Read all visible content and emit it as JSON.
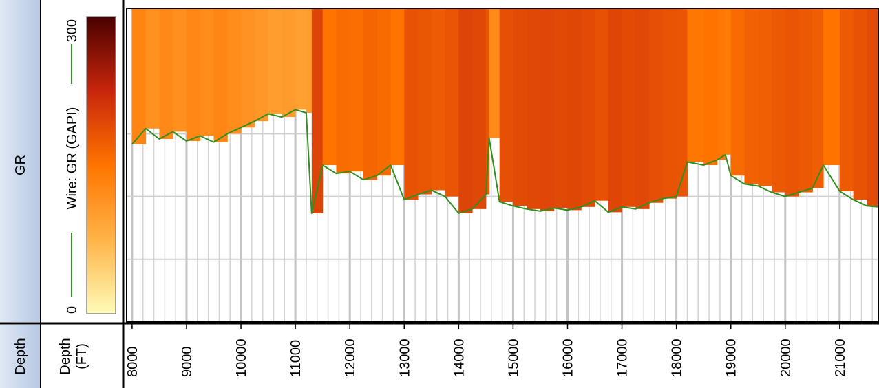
{
  "track_label": "GR",
  "depth_label": "Depth",
  "chart_data": {
    "type": "line",
    "x": [
      8000,
      8250,
      8500,
      8750,
      9000,
      9250,
      9500,
      9750,
      10000,
      10250,
      10500,
      10750,
      11000,
      11200,
      11300,
      11500,
      11750,
      12000,
      12250,
      12500,
      12750,
      13000,
      13250,
      13500,
      13750,
      14000,
      14250,
      14500,
      14560,
      14750,
      15000,
      15250,
      15500,
      15750,
      16000,
      16250,
      16500,
      16750,
      17000,
      17250,
      17500,
      17750,
      18000,
      18200,
      18500,
      18750,
      18900,
      19000,
      19250,
      19500,
      19750,
      20000,
      20250,
      20500,
      20700,
      21000,
      21250,
      21500,
      21700
    ],
    "series": [
      {
        "name": "Wire: GR (GAPI)",
        "color": "#2f8f1f",
        "values": [
          130,
          115,
          125,
          118,
          127,
          122,
          128,
          120,
          114,
          108,
          101,
          104,
          97,
          100,
          196,
          150,
          158,
          156,
          164,
          160,
          150,
          183,
          178,
          174,
          180,
          196,
          192,
          178,
          124,
          185,
          189,
          192,
          194,
          191,
          193,
          190,
          184,
          195,
          190,
          192,
          186,
          182,
          180,
          147,
          150,
          145,
          140,
          160,
          168,
          170,
          176,
          180,
          176,
          172,
          150,
          175,
          183,
          189,
          190
        ]
      }
    ],
    "xlabel": [
      "Depth",
      "(FT)"
    ],
    "xlim": [
      7900,
      21710
    ],
    "xticks": [
      8000,
      9000,
      10000,
      11000,
      12000,
      13000,
      14000,
      15000,
      16000,
      17000,
      18000,
      19000,
      20000,
      21000
    ],
    "ylim": [
      300,
      0
    ],
    "ygrid": [
      120,
      180,
      240
    ],
    "colorbar": {
      "range": [
        0,
        300
      ],
      "colors": [
        "#fffbb8",
        "#ffb347",
        "#ff7400",
        "#c8260c",
        "#4a0000"
      ]
    }
  }
}
